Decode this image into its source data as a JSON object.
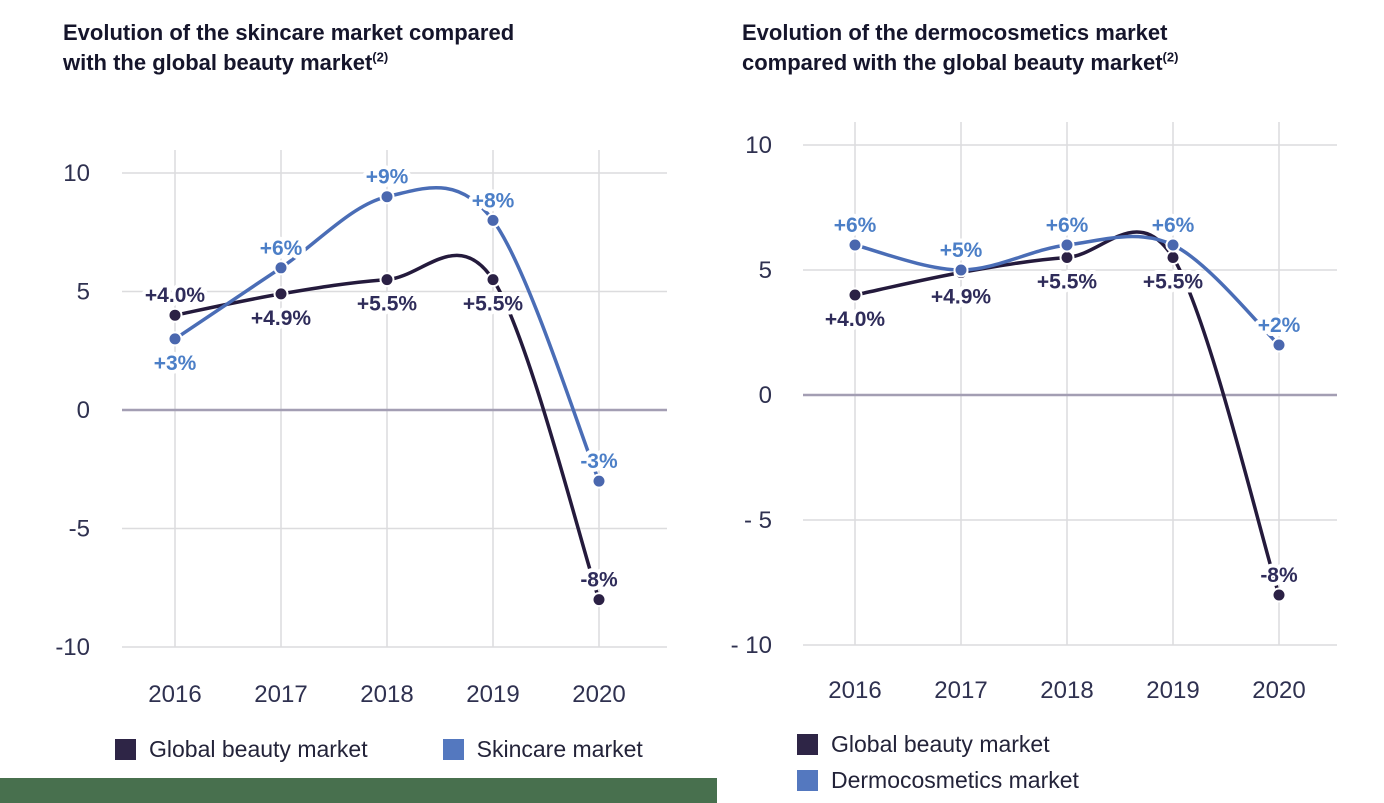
{
  "page": {
    "background": "#ffffff",
    "footer_bar_color": "#48704e"
  },
  "chart_data": [
    {
      "type": "line",
      "title": "Evolution of the skincare market compared with the global beauty market(2)",
      "title_lines": [
        "Evolution of the skincare market compared",
        "with the global beauty market"
      ],
      "title_sup": "(2)",
      "categories": [
        "2016",
        "2017",
        "2018",
        "2019",
        "2020"
      ],
      "ylim": [
        -10,
        10
      ],
      "grid": true,
      "legend_position": "bottom",
      "legend_layout": "row",
      "yticks": [
        {
          "label": "10",
          "value": 10
        },
        {
          "label": "5",
          "value": 5
        },
        {
          "label": "0",
          "value": 0
        },
        {
          "label": "-5",
          "value": -5
        },
        {
          "label": "-10",
          "value": -10
        }
      ],
      "series": [
        {
          "name": "Global beauty market",
          "values": [
            4.0,
            4.9,
            5.5,
            5.5,
            -8
          ],
          "point_labels": [
            "+4.0%",
            "+4.9%",
            "+5.5%",
            "+5.5%",
            "-8%"
          ],
          "label_positions": [
            "above",
            "below",
            "below",
            "below",
            "above"
          ],
          "line_color": "#241a3c",
          "dot_color": "#2b2145",
          "label_color": "#2f2c5a",
          "legend_color": "#2e2546"
        },
        {
          "name": "Skincare market",
          "values": [
            3,
            6,
            9,
            8,
            -3
          ],
          "point_labels": [
            "+3%",
            "+6%",
            "+9%",
            "+8%",
            "-3%"
          ],
          "label_positions": [
            "below",
            "above",
            "above",
            "above",
            "above"
          ],
          "line_color": "#4a6db6",
          "dot_color": "#4a67ae",
          "label_color": "#4c7fc7",
          "legend_color": "#5478bf"
        }
      ]
    },
    {
      "type": "line",
      "title": "Evolution of the dermocosmetics market compared with the global beauty market(2)",
      "title_lines": [
        "Evolution of the dermocosmetics market",
        "compared with the global beauty market"
      ],
      "title_sup": "(2)",
      "categories": [
        "2016",
        "2017",
        "2018",
        "2019",
        "2020"
      ],
      "ylim": [
        -10,
        10
      ],
      "grid": true,
      "legend_position": "bottom",
      "legend_layout": "column",
      "yticks": [
        {
          "label": "10",
          "value": 10
        },
        {
          "label": "5",
          "value": 5
        },
        {
          "label": "0",
          "value": 0
        },
        {
          "label": "- 5",
          "value": -5
        },
        {
          "label": "- 10",
          "value": -10
        }
      ],
      "series": [
        {
          "name": "Global beauty market",
          "values": [
            4.0,
            4.9,
            5.5,
            5.5,
            -8
          ],
          "point_labels": [
            "+4.0%",
            "+4.9%",
            "+5.5%",
            "+5.5%",
            "-8%"
          ],
          "label_positions": [
            "below",
            "below",
            "below",
            "below",
            "above"
          ],
          "line_color": "#241a3c",
          "dot_color": "#2b2145",
          "label_color": "#2f2c5a",
          "legend_color": "#2e2546"
        },
        {
          "name": "Dermocosmetics market",
          "values": [
            6,
            5,
            6,
            6,
            2
          ],
          "point_labels": [
            "+6%",
            "+5%",
            "+6%",
            "+6%",
            "+2%"
          ],
          "label_positions": [
            "above",
            "above",
            "above",
            "above",
            "above"
          ],
          "line_color": "#4a6db6",
          "dot_color": "#4a67ae",
          "label_color": "#4c7fc7",
          "legend_color": "#5478bf"
        }
      ]
    }
  ]
}
